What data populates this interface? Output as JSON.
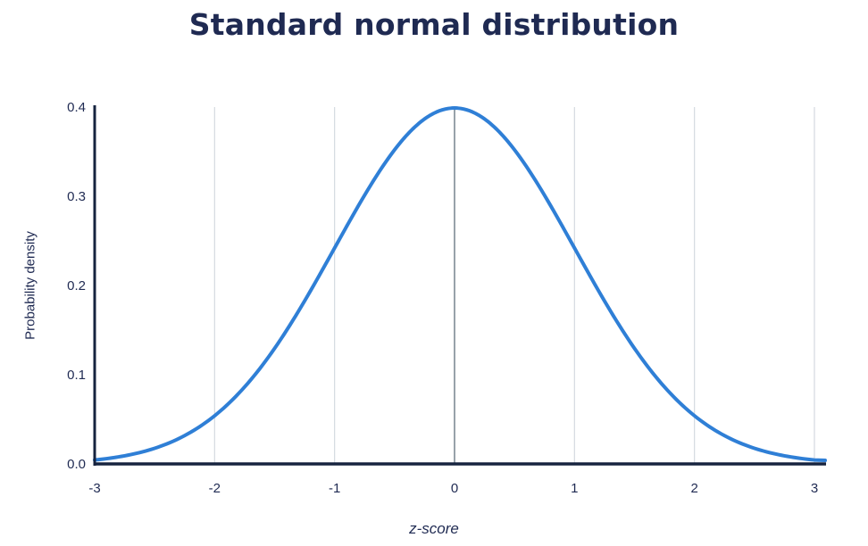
{
  "chart_data": {
    "type": "line",
    "title": "Standard normal distribution",
    "xlabel": "z-score",
    "ylabel": "Probability density",
    "xlim": [
      -3,
      3
    ],
    "ylim": [
      0,
      0.4
    ],
    "x_ticks": [
      "-3",
      "-2",
      "-1",
      "0",
      "1",
      "2",
      "3"
    ],
    "y_ticks": [
      "0.0",
      "0.1",
      "0.2",
      "0.3",
      "0.4"
    ],
    "x_tick_values": [
      -3,
      -2,
      -1,
      0,
      1,
      2,
      3
    ],
    "y_tick_values": [
      0,
      0.1,
      0.2,
      0.3,
      0.4
    ],
    "grid": "vertical",
    "legend": "none",
    "series": [
      {
        "color": "#2f7fd6",
        "x": [
          -3.0,
          -2.75,
          -2.5,
          -2.25,
          -2.0,
          -1.75,
          -1.5,
          -1.25,
          -1.0,
          -0.75,
          -0.5,
          -0.25,
          0.0,
          0.25,
          0.5,
          0.75,
          1.0,
          1.25,
          1.5,
          1.75,
          2.0,
          2.25,
          2.5,
          2.75,
          3.0
        ],
        "y": [
          0.004,
          0.009,
          0.018,
          0.032,
          0.054,
          0.086,
          0.13,
          0.183,
          0.242,
          0.301,
          0.352,
          0.387,
          0.399,
          0.387,
          0.352,
          0.301,
          0.242,
          0.183,
          0.13,
          0.086,
          0.054,
          0.032,
          0.018,
          0.009,
          0.004
        ]
      }
    ],
    "colors": {
      "curve": "#2f7fd6",
      "axis": "#16233f",
      "grid": "#d4d9e0",
      "center_line": "#6b7a85",
      "text": "#1f2a52"
    }
  }
}
